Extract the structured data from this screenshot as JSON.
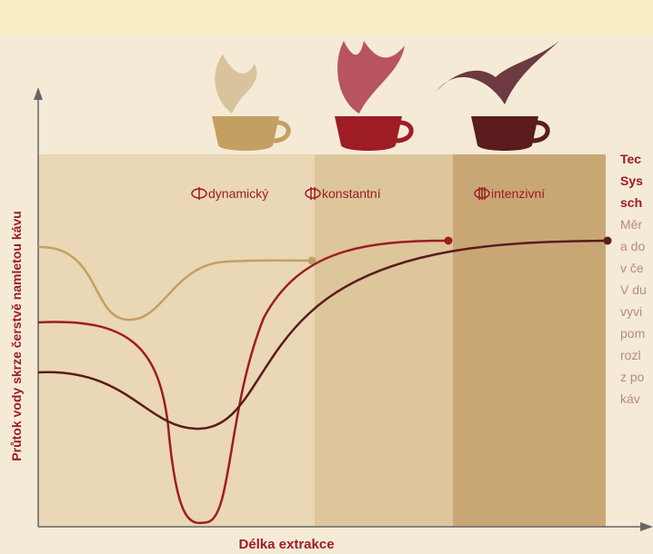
{
  "axes": {
    "y_label": "Průtok vody skrze čerstvě namletou kávu",
    "x_label": "Délka extrakce"
  },
  "zones": [
    {
      "label": "dynamický"
    },
    {
      "label": "konstantní"
    },
    {
      "label": "intenzivní"
    }
  ],
  "side_text": {
    "heading": [
      "Tec",
      "Sys",
      "sch"
    ],
    "body": [
      "Měr",
      "a do",
      "v če",
      "V du",
      "vyvi",
      "pom",
      "rozl",
      "z po",
      "káv"
    ]
  }
}
